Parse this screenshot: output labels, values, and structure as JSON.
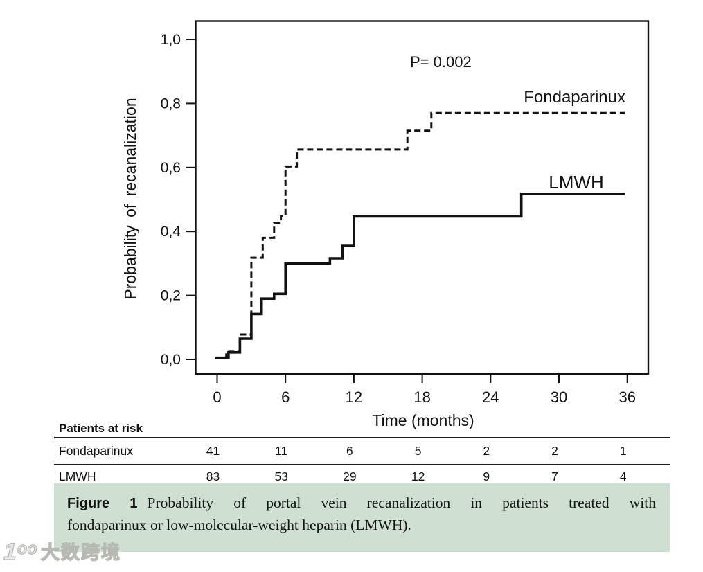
{
  "chart_data": {
    "type": "line",
    "subtype": "kaplan-meier-step",
    "title": "",
    "xlabel": "Time (months)",
    "ylabel": "Probability of recanalization",
    "annotation": "P= 0.002",
    "xticks": [
      0,
      6,
      12,
      18,
      24,
      30,
      36
    ],
    "xtick_labels": [
      "0",
      "6",
      "12",
      "18",
      "24",
      "30",
      "36"
    ],
    "yticks": [
      0.0,
      0.2,
      0.4,
      0.6,
      0.8,
      1.0
    ],
    "ytick_labels": [
      "0,0",
      "0,2",
      "0,4",
      "0,6",
      "0,8",
      "1,0"
    ],
    "xlim": [
      -2,
      37.9
    ],
    "ylim": [
      -0.05,
      1.06
    ],
    "x_end": 35.8,
    "grid": false,
    "series": [
      {
        "name": "Fondaparinux",
        "line_style": "dashed",
        "steps": [
          [
            -0.2,
            0.005
          ],
          [
            0.8,
            0.024
          ],
          [
            2,
            0.078
          ],
          [
            3,
            0.318
          ],
          [
            4,
            0.38
          ],
          [
            5,
            0.427
          ],
          [
            5.6,
            0.447
          ],
          [
            6,
            0.603
          ],
          [
            7,
            0.656
          ],
          [
            16.7,
            0.715
          ],
          [
            18.8,
            0.77
          ]
        ]
      },
      {
        "name": "LMWH",
        "line_style": "solid",
        "steps": [
          [
            -0.2,
            0.005
          ],
          [
            1,
            0.022
          ],
          [
            2,
            0.065
          ],
          [
            3,
            0.142
          ],
          [
            3.9,
            0.19
          ],
          [
            5,
            0.205
          ],
          [
            6,
            0.3
          ],
          [
            9.9,
            0.316
          ],
          [
            11,
            0.355
          ],
          [
            12,
            0.447
          ],
          [
            26.7,
            0.517
          ]
        ]
      }
    ]
  },
  "risk_table": {
    "title": "Patients at risk",
    "time_points": [
      0,
      6,
      12,
      18,
      24,
      30,
      36
    ],
    "rows": [
      {
        "label": "Fondaparinux",
        "counts": [
          "41",
          "11",
          "6",
          "5",
          "2",
          "2",
          "1"
        ]
      },
      {
        "label": "LMWH",
        "counts": [
          "83",
          "53",
          "29",
          "12",
          "9",
          "7",
          "4"
        ]
      }
    ]
  },
  "caption": {
    "figure_label": "Figure 1",
    "line1": "Probability of portal vein recanalization in patients treated with",
    "line2": "fondaparinux or low-molecular-weight heparin (LMWH).",
    "background_color": "#cfdfd2"
  },
  "watermark": {
    "logo": "1ᵒᵒ",
    "text": "大数跨境"
  },
  "colors": {
    "line": "#111111",
    "text": "#111111"
  }
}
